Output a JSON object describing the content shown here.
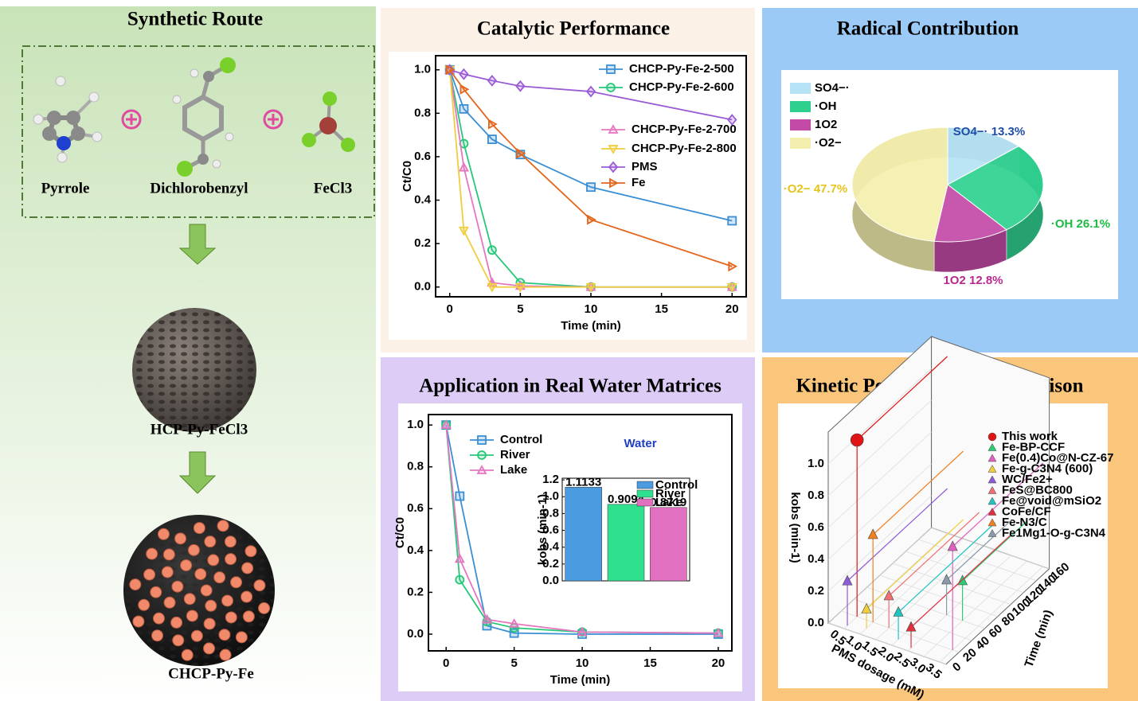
{
  "synthetic_route": {
    "title": "Synthetic Route",
    "reactants": [
      "Pyrrole",
      "Dichlorobenzyl",
      "FeCl3"
    ],
    "intermediate": "HCP-Py-FeCl3",
    "product": "CHCP-Py-Fe"
  },
  "chart_data": [
    {
      "type": "line",
      "title": "Catalytic Performance",
      "xlabel": "Time (min)",
      "ylabel": "Ct/C0",
      "x": [
        0,
        1,
        3,
        5,
        10,
        20
      ],
      "xlim": [
        -1,
        21
      ],
      "xticks": [
        0,
        5,
        10,
        15,
        20
      ],
      "ylim": [
        -0.045,
        1.065
      ],
      "yticks": [
        {
          "value": 0,
          "label": "0.0"
        },
        {
          "value": 0.2,
          "label": "0.2"
        },
        {
          "value": 0.4,
          "label": "0.4"
        },
        {
          "value": 0.6,
          "label": "0.6"
        },
        {
          "value": 0.8,
          "label": "0.8"
        },
        {
          "value": 1,
          "label": "1.0"
        }
      ],
      "series": [
        {
          "name": "CHCP-Py-Fe-2-500",
          "color": "#3a8fd4",
          "marker": "square",
          "values": [
            1.0,
            0.82,
            0.68,
            0.61,
            0.46,
            0.305
          ]
        },
        {
          "name": "CHCP-Py-Fe-2-600",
          "color": "#27c779",
          "marker": "circle",
          "values": [
            1.0,
            0.66,
            0.17,
            0.02,
            0.0,
            0.0
          ]
        },
        {
          "name": "CHCP-Py-Fe-2-700",
          "color": "#e676c0",
          "marker": "triangle-up",
          "values": [
            1.0,
            0.55,
            0.02,
            0.005,
            0.0,
            0.0
          ]
        },
        {
          "name": "CHCP-Py-Fe-2-800",
          "color": "#efcd3c",
          "marker": "triangle-down",
          "values": [
            1.0,
            0.26,
            0.0,
            0.0,
            0.0,
            0.0
          ]
        },
        {
          "name": "PMS",
          "color": "#9a5bd6",
          "marker": "diamond",
          "values": [
            1.0,
            0.98,
            0.95,
            0.925,
            0.9,
            0.77
          ]
        },
        {
          "name": "Fe",
          "color": "#e4661d",
          "marker": "triangle-right",
          "values": [
            1.0,
            0.91,
            0.75,
            0.615,
            0.31,
            0.095
          ]
        }
      ]
    },
    {
      "type": "pie",
      "title": "Radical Contribution",
      "categories": [
        "SO4−·",
        "·OH",
        "1O2",
        "·O2−"
      ],
      "values": [
        13.3,
        26.1,
        12.8,
        47.7
      ],
      "value_labels": [
        "SO4−· 13.3%",
        "·OH 26.1%",
        "1O2 12.8%",
        "·O2− 47.7%"
      ],
      "colors": [
        "#b5e2f4",
        "#2fd08f",
        "#c24aa6",
        "#f4efae"
      ],
      "label_colors": [
        "#1f4ea6",
        "#1dbb45",
        "#b8288f",
        "#e6c41c"
      ]
    },
    {
      "type": "line",
      "title": "Application in Real Water Matrices",
      "xlabel": "Time (min)",
      "ylabel": "Ct/C0",
      "annotation": "Water",
      "x": [
        0,
        1,
        3,
        5,
        10,
        20
      ],
      "xlim": [
        -1.3,
        21
      ],
      "xticks": [
        0,
        5,
        10,
        15,
        20
      ],
      "ylim": [
        -0.08,
        1.05
      ],
      "yticks": [
        {
          "value": 0,
          "label": "0.0"
        },
        {
          "value": 0.2,
          "label": "0.2"
        },
        {
          "value": 0.4,
          "label": "0.4"
        },
        {
          "value": 0.6,
          "label": "0.6"
        },
        {
          "value": 0.8,
          "label": "0.8"
        },
        {
          "value": 1,
          "label": "1.0"
        }
      ],
      "series": [
        {
          "name": "Control",
          "color": "#3a8fd4",
          "marker": "square",
          "values": [
            1.0,
            0.66,
            0.04,
            0.005,
            0.0,
            0.0
          ]
        },
        {
          "name": "River",
          "color": "#27c779",
          "marker": "circle",
          "values": [
            1.0,
            0.26,
            0.06,
            0.03,
            0.01,
            0.005
          ]
        },
        {
          "name": "Lake",
          "color": "#e676c0",
          "marker": "triangle-up",
          "values": [
            1.0,
            0.36,
            0.07,
            0.05,
            0.01,
            0.005
          ]
        }
      ],
      "inset": {
        "type": "bar",
        "ylabel": "kobs (min-1)",
        "categories": [
          "Control",
          "River",
          "Lake"
        ],
        "values": [
          1.1133,
          0.9094,
          0.8719
        ],
        "colors": [
          "#4a9be0",
          "#2fe08f",
          "#e270c0"
        ],
        "ylim": [
          0,
          1.22
        ],
        "yticks": [
          {
            "value": 0,
            "label": "0.0"
          },
          {
            "value": 0.2,
            "label": "0.2"
          },
          {
            "value": 0.4,
            "label": "0.4"
          },
          {
            "value": 0.6,
            "label": "0.6"
          },
          {
            "value": 0.8,
            "label": "0.8"
          },
          {
            "value": 1,
            "label": "1.0"
          },
          {
            "value": 1.2,
            "label": "1.2"
          }
        ]
      }
    },
    {
      "type": "scatter3d",
      "title": "Kinetic Performance Comparison",
      "xlabel": "PMS dosage (mM)",
      "ylabel": "Time (min)",
      "zlabel": "kobs (min-1)",
      "xlim": [
        0,
        3.7
      ],
      "ylim": [
        0,
        160
      ],
      "zlim": [
        0,
        1.2
      ],
      "xticks": [
        {
          "value": 0.5,
          "label": "0.5"
        },
        {
          "value": 1,
          "label": "1.0"
        },
        {
          "value": 1.5,
          "label": "1.5"
        },
        {
          "value": 2,
          "label": "2.0"
        },
        {
          "value": 2.5,
          "label": "2.5"
        },
        {
          "value": 3,
          "label": "3.0"
        },
        {
          "value": 3.5,
          "label": "3.5"
        }
      ],
      "yticks": [
        0,
        20,
        40,
        60,
        80,
        100,
        120,
        140,
        160
      ],
      "zticks": [
        {
          "value": 0,
          "label": "0.0"
        },
        {
          "value": 0.2,
          "label": "0.2"
        },
        {
          "value": 0.4,
          "label": "0.4"
        },
        {
          "value": 0.6,
          "label": "0.6"
        },
        {
          "value": 0.8,
          "label": "0.8"
        },
        {
          "value": 1,
          "label": "1.0"
        }
      ],
      "series": [
        {
          "name": "This work",
          "color": "#e01414",
          "x": [
            0.5
          ],
          "y": [
            20
          ],
          "values": [
            1.11
          ]
        },
        {
          "name": "Fe-BP-CCF",
          "color": "#2ccc72",
          "x": [
            3.0
          ],
          "y": [
            60
          ],
          "values": [
            0.25
          ]
        },
        {
          "name": "Fe(0.4)Co@N-CZ-67",
          "color": "#e060c0",
          "x": [
            3.5
          ],
          "y": [
            20
          ],
          "values": [
            0.65
          ]
        },
        {
          "name": "Fe-g-C3N4 (600)",
          "color": "#f0cf3c",
          "x": [
            1.0
          ],
          "y": [
            10
          ],
          "values": [
            0.12
          ]
        },
        {
          "name": "WC/Fe2+",
          "color": "#8e5ad8",
          "x": [
            0.5
          ],
          "y": [
            5
          ],
          "values": [
            0.28
          ]
        },
        {
          "name": "FeS@BC800",
          "color": "#f07070",
          "x": [
            1.5
          ],
          "y": [
            20
          ],
          "values": [
            0.2
          ]
        },
        {
          "name": "Fe@void@mSiO2",
          "color": "#20c4c0",
          "x": [
            2.0
          ],
          "y": [
            10
          ],
          "values": [
            0.17
          ]
        },
        {
          "name": "CoFe/CF",
          "color": "#e03040",
          "x": [
            2.5
          ],
          "y": [
            5
          ],
          "values": [
            0.13
          ]
        },
        {
          "name": "Fe-N3/C",
          "color": "#f08020",
          "x": [
            1.0
          ],
          "y": [
            20
          ],
          "values": [
            0.55
          ]
        },
        {
          "name": "Fe1Mg1-O-g-C3N4",
          "color": "#8a9aa8",
          "x": [
            2.5
          ],
          "y": [
            60
          ],
          "values": [
            0.22
          ]
        }
      ]
    }
  ]
}
